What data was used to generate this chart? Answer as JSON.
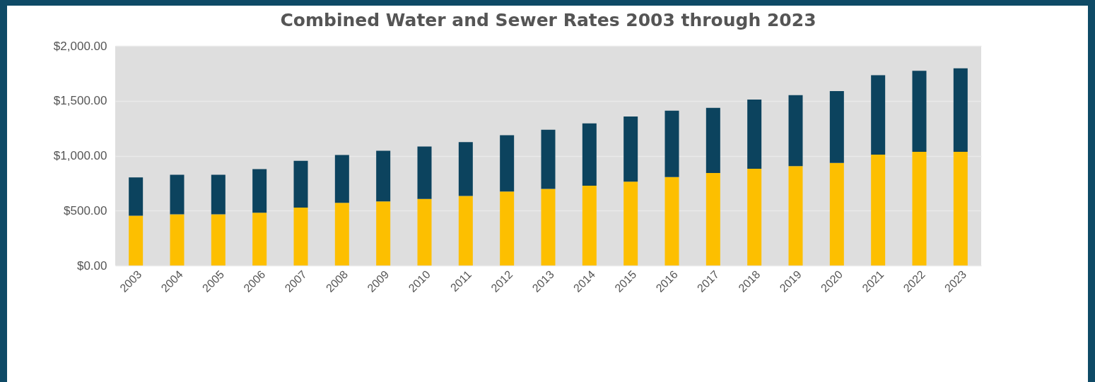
{
  "chart_data": {
    "type": "bar",
    "title": "Combined Water and Sewer Rates 2003 through 2023",
    "stacked": true,
    "grid": "y",
    "legend": false,
    "categories": [
      "2003",
      "2004",
      "2005",
      "2006",
      "2007",
      "2008",
      "2009",
      "2010",
      "2011",
      "2012",
      "2013",
      "2014",
      "2015",
      "2016",
      "2017",
      "2018",
      "2019",
      "2020",
      "2021",
      "2022",
      "2023"
    ],
    "series": [
      {
        "color": "#fdbf00",
        "values": [
          453,
          467,
          467,
          481,
          528,
          570,
          584,
          606,
          634,
          673,
          698,
          726,
          763,
          805,
          842,
          881,
          905,
          934,
          1010,
          1036,
          1036
        ]
      },
      {
        "color": "#0c435e",
        "values": [
          350,
          359,
          359,
          397,
          425,
          436,
          461,
          478,
          489,
          514,
          539,
          568,
          594,
          605,
          594,
          631,
          647,
          655,
          723,
          737,
          760
        ]
      }
    ],
    "ylim": [
      0,
      2000
    ],
    "yticks": [
      {
        "value": 0,
        "label": "$0.00"
      },
      {
        "value": 500,
        "label": "$500.00"
      },
      {
        "value": 1000,
        "label": "$1,000.00"
      },
      {
        "value": 1500,
        "label": "$1,500.00"
      },
      {
        "value": 2000,
        "label": "$2,000.00"
      }
    ]
  }
}
